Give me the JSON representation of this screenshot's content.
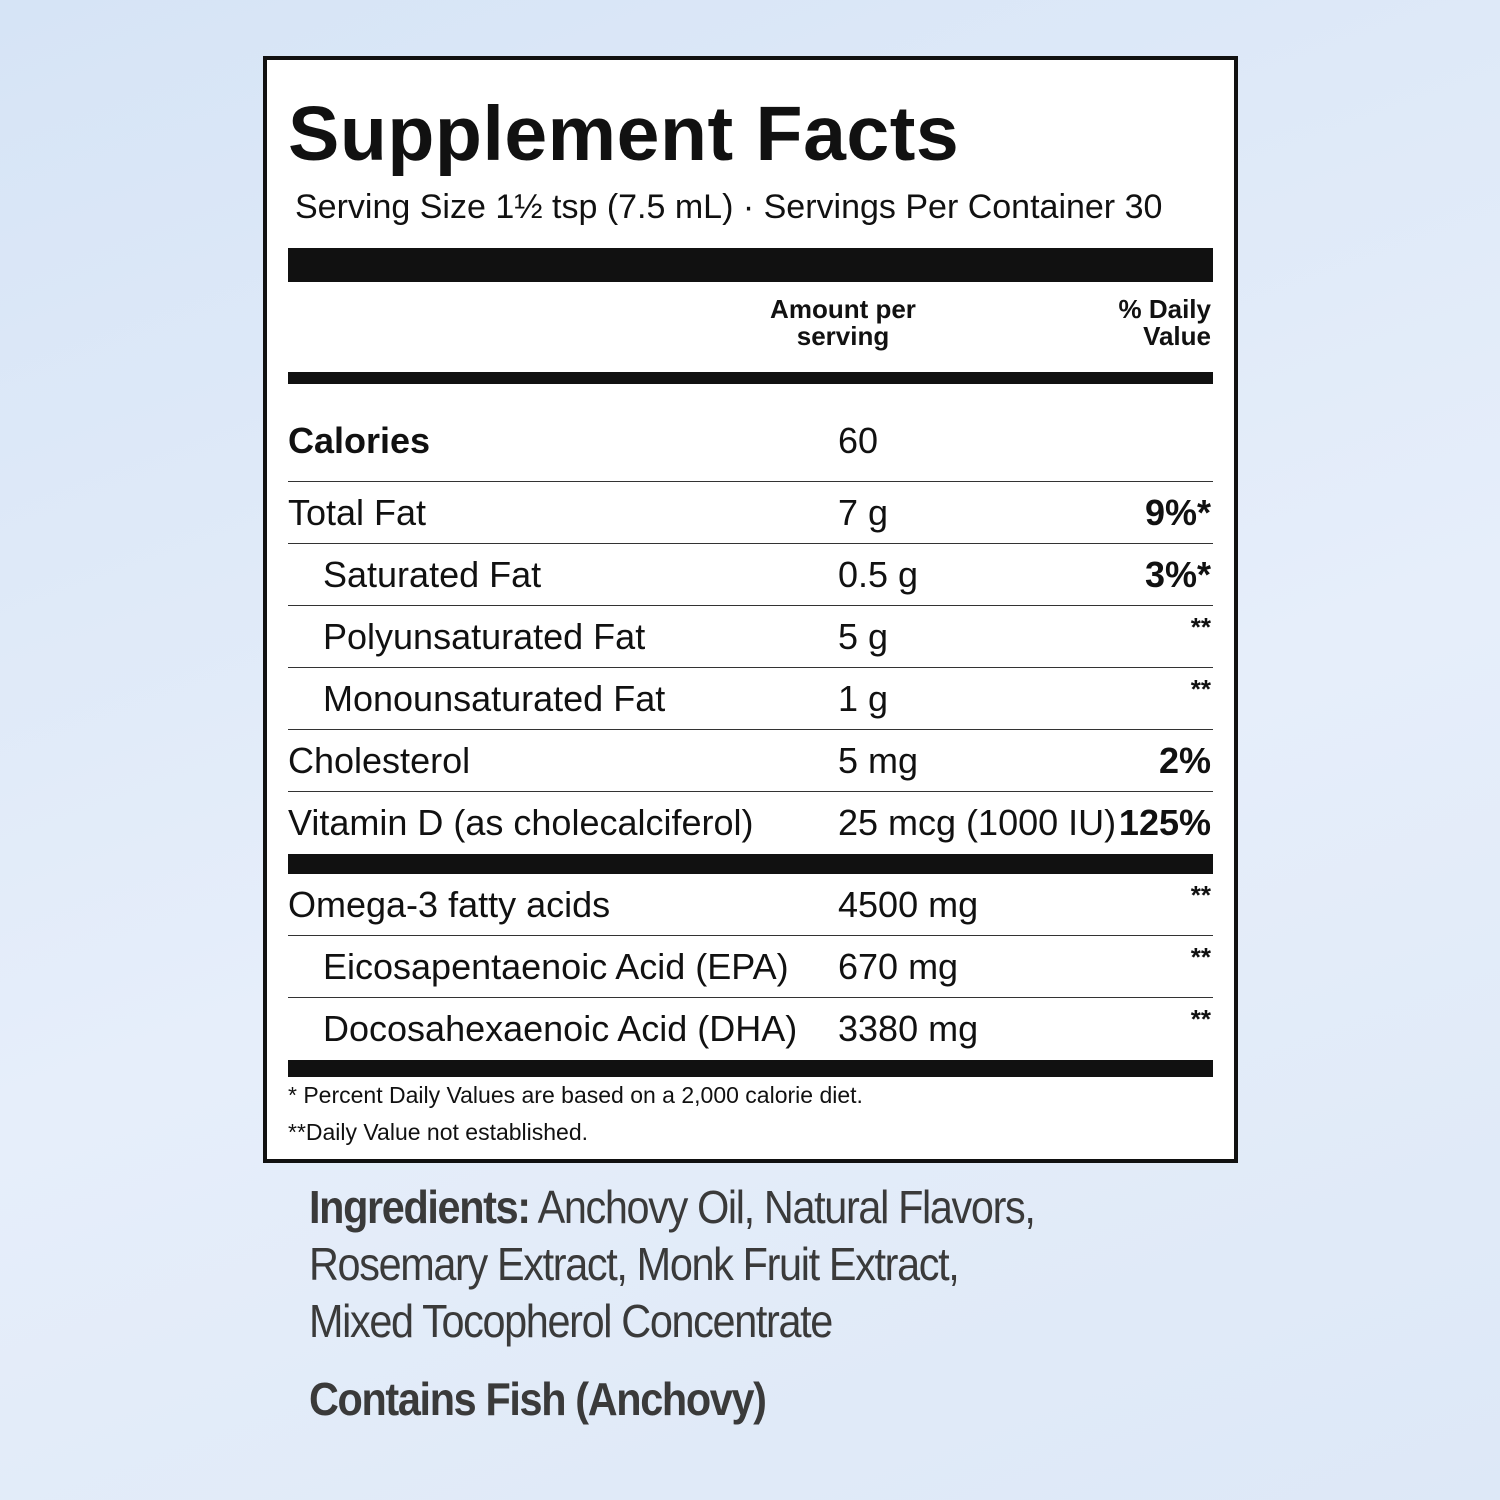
{
  "label": {
    "title": "Supplement Facts",
    "serving": "Serving Size 1½ tsp (7.5 mL) · Servings Per Container 30",
    "header": {
      "amount": [
        "Amount per",
        "serving"
      ],
      "dv": [
        "% Daily",
        "Value"
      ]
    },
    "sections": [
      [
        {
          "name": "Calories",
          "amount": "60"
        },
        {
          "name": "Total Fat",
          "amount": "7 g",
          "dv": "9%*",
          "sub": [
            {
              "name": "Saturated Fat",
              "amount": "0.5 g",
              "dv": "3%*"
            },
            {
              "name": "Polyunsaturated Fat",
              "amount": "5 g",
              "dv": "**"
            },
            {
              "name": "Monounsaturated Fat",
              "amount": "1 g",
              "dv": "**"
            }
          ]
        },
        {
          "name": "Cholesterol",
          "amount": "5 mg",
          "dv": "2%"
        },
        {
          "name": "Vitamin D (as cholecalciferol)",
          "amount": "25 mcg (1000 IU)",
          "dv": "125%"
        }
      ],
      [
        {
          "name": "Omega-3 fatty acids",
          "amount": "4500 mg",
          "dv": "**",
          "sub": [
            {
              "name": "Eicosapentaenoic Acid (EPA)",
              "amount": "670 mg",
              "dv": "**"
            },
            {
              "name": "Docosahexaenoic Acid (DHA)",
              "amount": "3380 mg",
              "dv": "**"
            }
          ]
        }
      ]
    ],
    "footnotes": [
      "* Percent Daily Values are based on a 2,000 calorie diet.",
      "**Daily Value not established."
    ]
  },
  "ingredients": {
    "label": "Ingredients:",
    "lines": [
      " Anchovy Oil, Natural Flavors,",
      "Rosemary Extract, Monk Fruit Extract,",
      "Mixed Tocopherol Concentrate"
    ],
    "allergen": "Contains Fish (Anchovy)"
  }
}
